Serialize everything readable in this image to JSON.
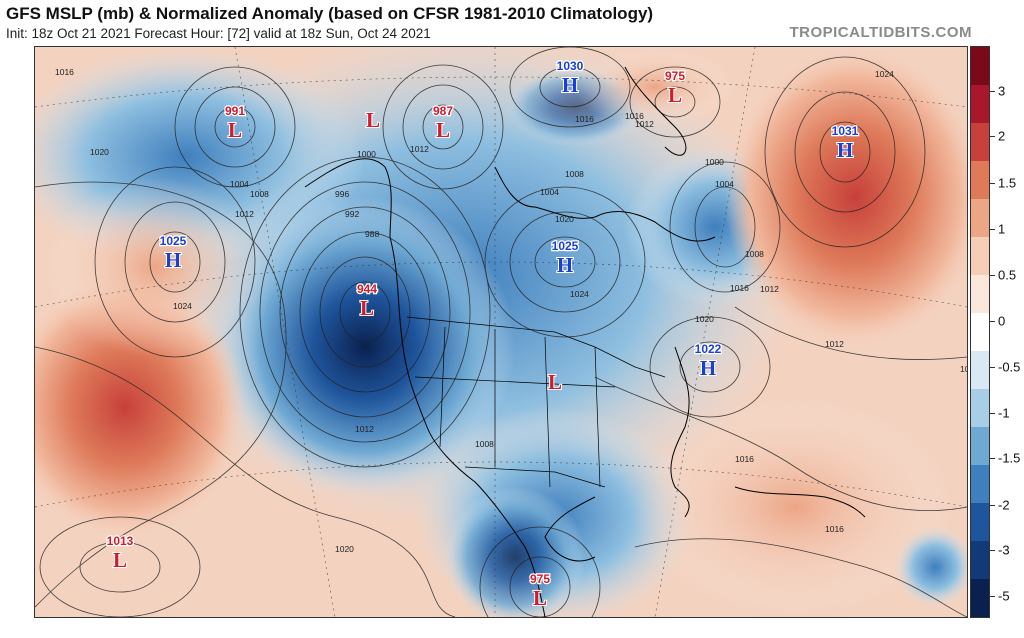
{
  "header": {
    "title": "GFS MSLP (mb) & Normalized Anomaly (based on CFSR 1981-2010 Climatology)",
    "subtitle": "Init: 18z Oct 21 2021   Forecast Hour: [72]   valid at 18z Sun, Oct 24 2021",
    "credit": "TROPICALTIDBITS.COM"
  },
  "pressure_centers": [
    {
      "type": "L",
      "value": "991",
      "color": "#d11a2a"
    },
    {
      "type": "L",
      "value": "",
      "color": "#d11a2a"
    },
    {
      "type": "L",
      "value": "987",
      "color": "#d11a2a"
    },
    {
      "type": "H",
      "value": "1030",
      "color": "#1a3fd1"
    },
    {
      "type": "L",
      "value": "975",
      "color": "#d11a2a"
    },
    {
      "type": "H",
      "value": "1031",
      "color": "#1a3fd1"
    },
    {
      "type": "H",
      "value": "1025",
      "color": "#1a3fd1"
    },
    {
      "type": "L",
      "value": "944",
      "color": "#d11a2a"
    },
    {
      "type": "H",
      "value": "1025",
      "color": "#1a3fd1"
    },
    {
      "type": "H",
      "value": "1022",
      "color": "#1a3fd1"
    },
    {
      "type": "L",
      "value": "",
      "color": "#d11a2a"
    },
    {
      "type": "L",
      "value": "1013",
      "color": "#d11a2a"
    },
    {
      "type": "L",
      "value": "975",
      "color": "#d11a2a"
    }
  ],
  "isobar_labels": [
    "1016",
    "1020",
    "1024",
    "1012",
    "1008",
    "1004",
    "1000",
    "996",
    "992",
    "988",
    "1012",
    "1016",
    "1008",
    "1004",
    "1020",
    "1024",
    "1016",
    "1012",
    "1000",
    "1004",
    "1008",
    "1012",
    "1016",
    "1020",
    "1016",
    "1012",
    "1008",
    "1016",
    "1012",
    "1016",
    "1020",
    "1024"
  ],
  "colorbar": {
    "ticks": [
      "3",
      "2",
      "1.5",
      "1",
      "0.5",
      "0",
      "-0.5",
      "-1",
      "-1.5",
      "-2",
      "-3",
      "-5"
    ],
    "colors": [
      "#7a0a1a",
      "#a8182a",
      "#c7403a",
      "#de7a5a",
      "#eca585",
      "#f6cdb6",
      "#fbe8dc",
      "#ffffff",
      "#d8e8f4",
      "#a8cde6",
      "#6fa9d3",
      "#3f7fbd",
      "#1f559c",
      "#123a78",
      "#0a2150"
    ]
  }
}
